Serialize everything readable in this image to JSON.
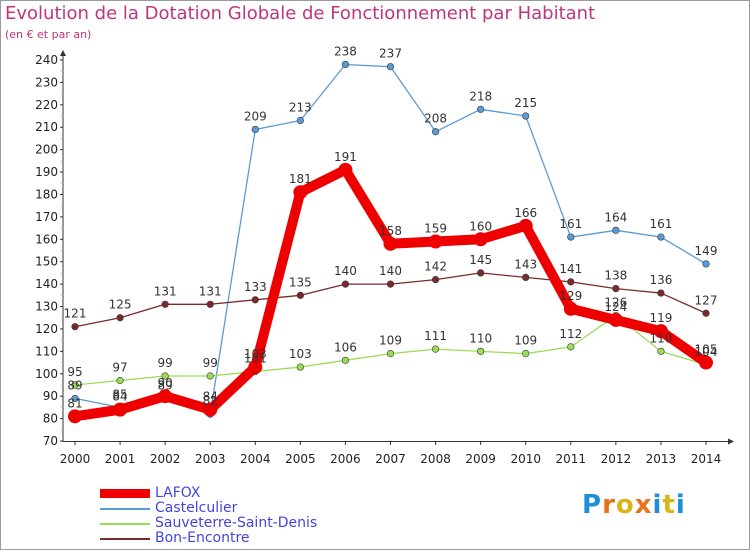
{
  "title": "Evolution de la Dotation Globale de Fonctionnement par Habitant",
  "subtitle": "(en € et par an)",
  "logo": {
    "text": "Proxiti",
    "colors": [
      "#1e8fd6",
      "#e8731a",
      "#d9b51a",
      "#e8731a",
      "#1e8fd6",
      "#d9b51a",
      "#1e8fd6"
    ]
  },
  "chart_data": {
    "type": "line",
    "x": [
      "2000",
      "2001",
      "2002",
      "2003",
      "2004",
      "2005",
      "2006",
      "2007",
      "2008",
      "2009",
      "2010",
      "2011",
      "2012",
      "2013",
      "2014"
    ],
    "ylim": [
      70,
      240
    ],
    "yticks": [
      70,
      80,
      90,
      100,
      110,
      120,
      130,
      140,
      150,
      160,
      170,
      180,
      190,
      200,
      210,
      220,
      230,
      240
    ],
    "grid": false,
    "legend_position": "bottom-left",
    "series": [
      {
        "name": "Castelculier",
        "color": "#5b9bd5",
        "labels": [
          "89",
          "85",
          "89",
          "82",
          "209",
          "213",
          "238",
          "237",
          "208",
          "218",
          "215",
          "161",
          "164",
          "161",
          "149"
        ],
        "values": [
          89,
          85,
          89,
          82,
          209,
          213,
          238,
          237,
          208,
          218,
          215,
          161,
          164,
          161,
          149
        ]
      },
      {
        "name": "Sauveterre-Saint-Denis",
        "color": "#99dd55",
        "labels": [
          "95",
          "97",
          "99",
          "99",
          "101",
          "103",
          "106",
          "109",
          "111",
          "110",
          "109",
          "112",
          "126",
          "110",
          "104"
        ],
        "values": [
          95,
          97,
          99,
          99,
          101,
          103,
          106,
          109,
          111,
          110,
          109,
          112,
          126,
          110,
          104
        ]
      },
      {
        "name": "Bon-Encontre",
        "color": "#7a2a2a",
        "labels": [
          "121",
          "125",
          "131",
          "131",
          "133",
          "135",
          "140",
          "140",
          "142",
          "145",
          "143",
          "141",
          "138",
          "136",
          "127"
        ],
        "values": [
          121,
          125,
          131,
          131,
          133,
          135,
          140,
          140,
          142,
          145,
          143,
          141,
          138,
          136,
          127
        ]
      },
      {
        "name": "LAFOX",
        "color": "#ee0000",
        "labels": [
          "81",
          "84",
          "90",
          "84",
          "103",
          "181",
          "191",
          "158",
          "159",
          "160",
          "166",
          "129",
          "124",
          "119",
          "105"
        ],
        "values": [
          81,
          84,
          90,
          84,
          103,
          181,
          191,
          158,
          159,
          160,
          166,
          129,
          124,
          119,
          105
        ]
      }
    ],
    "legend_order": [
      "LAFOX",
      "Castelculier",
      "Sauveterre-Saint-Denis",
      "Bon-Encontre"
    ]
  }
}
